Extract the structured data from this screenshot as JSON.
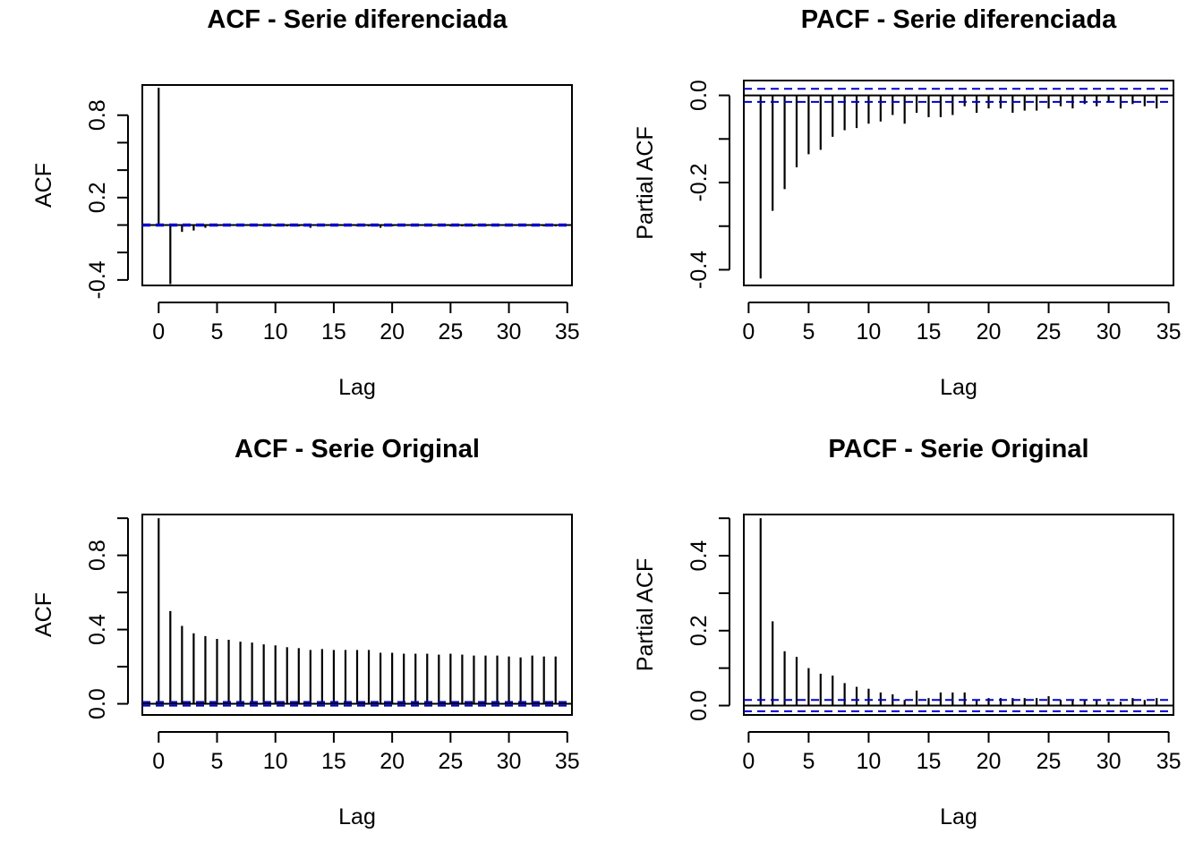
{
  "colors": {
    "axis": "#000000",
    "spike": "#000000",
    "ci": "#0000CC",
    "background": "#FFFFFF"
  },
  "chart_data": [
    {
      "type": "bar",
      "title": "ACF - Serie diferenciada",
      "xlabel": "Lag",
      "ylabel": "ACF",
      "xlim": [
        -1.4,
        35.4
      ],
      "ylim": [
        -0.44,
        1.02
      ],
      "xticks": [
        "0",
        "5",
        "10",
        "15",
        "20",
        "25",
        "30",
        "35"
      ],
      "yticks": [
        "-0.4",
        "0.2",
        "0.8"
      ],
      "ytick_minor": [
        -0.2,
        0.0,
        0.4,
        0.6
      ],
      "ci": 0.005,
      "x": [
        0,
        1,
        2,
        3,
        4,
        5,
        6,
        7,
        8,
        9,
        10,
        11,
        12,
        13,
        14,
        15,
        16,
        17,
        18,
        19,
        20,
        21,
        22,
        23,
        24,
        25,
        26,
        27,
        28,
        29,
        30,
        31,
        32,
        33,
        34
      ],
      "values": [
        1.0,
        -0.43,
        -0.05,
        -0.04,
        -0.02,
        -0.01,
        -0.01,
        -0.01,
        -0.01,
        -0.01,
        -0.01,
        -0.01,
        -0.01,
        -0.02,
        -0.01,
        -0.01,
        -0.01,
        -0.01,
        -0.01,
        -0.02,
        -0.01,
        -0.01,
        -0.01,
        -0.01,
        -0.01,
        -0.01,
        -0.01,
        -0.01,
        -0.01,
        -0.01,
        -0.01,
        -0.01,
        -0.01,
        -0.01,
        -0.01
      ]
    },
    {
      "type": "bar",
      "title": "PACF - Serie diferenciada",
      "xlabel": "Lag",
      "ylabel": "Partial ACF",
      "xlim": [
        -0.4,
        35.4
      ],
      "ylim": [
        -0.436,
        0.034
      ],
      "xticks": [
        "0",
        "5",
        "10",
        "15",
        "20",
        "25",
        "30",
        "35"
      ],
      "yticks": [
        "-0.4",
        "-0.2",
        "0.0"
      ],
      "ytick_minor": [
        -0.3,
        -0.1
      ],
      "ci": 0.015,
      "x": [
        1,
        2,
        3,
        4,
        5,
        6,
        7,
        8,
        9,
        10,
        11,
        12,
        13,
        14,
        15,
        16,
        17,
        18,
        19,
        20,
        21,
        22,
        23,
        24,
        25,
        26,
        27,
        28,
        29,
        30,
        31,
        32,
        33,
        34
      ],
      "values": [
        -0.42,
        -0.265,
        -0.215,
        -0.165,
        -0.135,
        -0.125,
        -0.095,
        -0.08,
        -0.075,
        -0.065,
        -0.06,
        -0.045,
        -0.065,
        -0.04,
        -0.05,
        -0.05,
        -0.045,
        -0.025,
        -0.04,
        -0.03,
        -0.03,
        -0.04,
        -0.035,
        -0.035,
        -0.03,
        -0.025,
        -0.03,
        -0.02,
        -0.025,
        -0.015,
        -0.03,
        -0.02,
        -0.025,
        -0.03
      ]
    },
    {
      "type": "bar",
      "title": "ACF - Serie Original",
      "xlabel": "Lag",
      "ylabel": "ACF",
      "xlim": [
        -1.4,
        35.4
      ],
      "ylim": [
        -0.06,
        1.02
      ],
      "xticks": [
        "0",
        "5",
        "10",
        "15",
        "20",
        "25",
        "30",
        "35"
      ],
      "yticks": [
        "0.0",
        "0.4",
        "0.8"
      ],
      "ytick_minor": [
        0.2,
        0.6,
        1.0
      ],
      "ci": 0.01,
      "x": [
        0,
        1,
        2,
        3,
        4,
        5,
        6,
        7,
        8,
        9,
        10,
        11,
        12,
        13,
        14,
        15,
        16,
        17,
        18,
        19,
        20,
        21,
        22,
        23,
        24,
        25,
        26,
        27,
        28,
        29,
        30,
        31,
        32,
        33,
        34
      ],
      "values": [
        1.0,
        0.5,
        0.42,
        0.38,
        0.365,
        0.35,
        0.345,
        0.335,
        0.33,
        0.32,
        0.315,
        0.305,
        0.3,
        0.29,
        0.295,
        0.29,
        0.29,
        0.29,
        0.29,
        0.275,
        0.275,
        0.27,
        0.27,
        0.27,
        0.265,
        0.27,
        0.265,
        0.26,
        0.26,
        0.26,
        0.255,
        0.25,
        0.26,
        0.255,
        0.255
      ]
    },
    {
      "type": "bar",
      "title": "PACF - Serie Original",
      "xlabel": "Lag",
      "ylabel": "Partial ACF",
      "xlim": [
        -0.4,
        35.4
      ],
      "ylim": [
        -0.025,
        0.51
      ],
      "xticks": [
        "0",
        "5",
        "10",
        "15",
        "20",
        "25",
        "30",
        "35"
      ],
      "yticks": [
        "0.0",
        "0.2",
        "0.4"
      ],
      "ytick_minor": [
        0.1,
        0.3,
        0.5
      ],
      "ci": 0.015,
      "x": [
        1,
        2,
        3,
        4,
        5,
        6,
        7,
        8,
        9,
        10,
        11,
        12,
        13,
        14,
        15,
        16,
        17,
        18,
        19,
        20,
        21,
        22,
        23,
        24,
        25,
        26,
        27,
        28,
        29,
        30,
        31,
        32,
        33,
        34
      ],
      "values": [
        0.5,
        0.225,
        0.145,
        0.13,
        0.1,
        0.085,
        0.08,
        0.06,
        0.05,
        0.045,
        0.035,
        0.03,
        0.015,
        0.04,
        0.02,
        0.035,
        0.035,
        0.035,
        0.015,
        0.02,
        0.02,
        0.02,
        0.02,
        0.02,
        0.025,
        0.015,
        0.015,
        0.015,
        0.015,
        0.01,
        0.01,
        0.02,
        0.015,
        0.02
      ]
    }
  ]
}
